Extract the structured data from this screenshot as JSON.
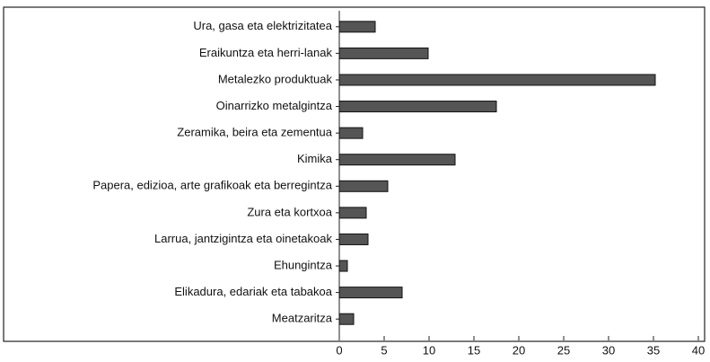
{
  "chart_data": {
    "type": "bar",
    "orientation": "horizontal",
    "categories": [
      "Ura, gasa eta elektrizitatea",
      "Eraikuntza eta herri-lanak",
      "Metalezko produktuak",
      "Oinarrizko metalgintza",
      "Zeramika, beira eta zementua",
      "Kimika",
      "Papera, edizioa, arte grafikoak eta berregintza",
      "Zura eta kortxoa",
      "Larrua, jantzigintza eta oinetakoak",
      "Ehungintza",
      "Elikadura, edariak eta tabakoa",
      "Meatzaritza"
    ],
    "values": [
      4.0,
      9.9,
      35.2,
      17.5,
      2.6,
      12.9,
      5.4,
      3.0,
      3.2,
      0.9,
      7.0,
      1.6
    ],
    "color": "#555555",
    "xlim": [
      0,
      40
    ],
    "xticks": [
      0,
      5,
      10,
      15,
      20,
      25,
      30,
      35,
      40
    ]
  }
}
